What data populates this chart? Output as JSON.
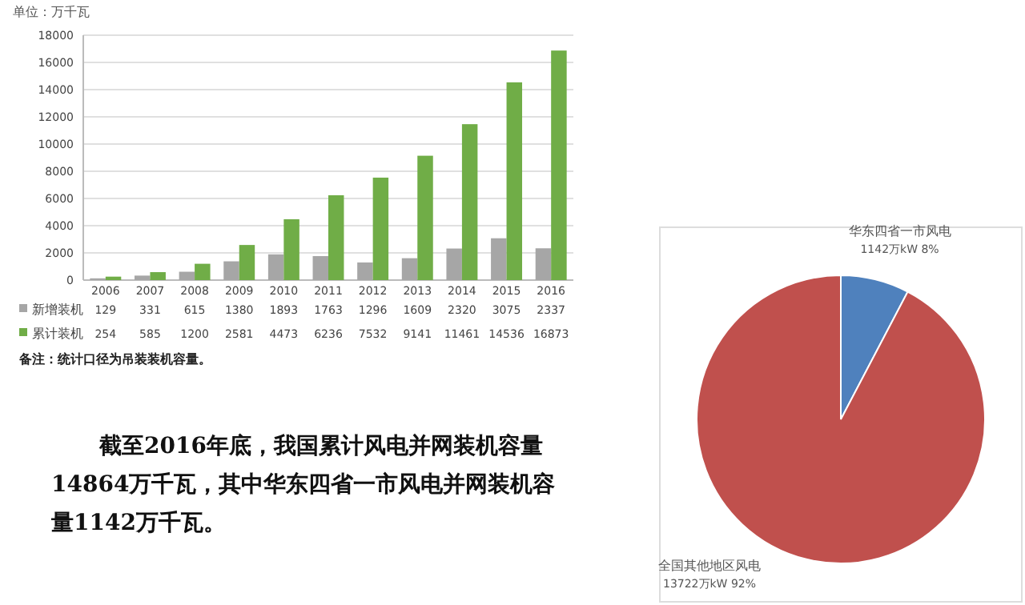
{
  "chart_data": [
    {
      "type": "bar",
      "ylabel": "单位：万千瓦",
      "categories": [
        "2006",
        "2007",
        "2008",
        "2009",
        "2010",
        "2011",
        "2012",
        "2013",
        "2014",
        "2015",
        "2016"
      ],
      "series": [
        {
          "name": "新增装机",
          "color": "#a6a6a6",
          "values": [
            129,
            331,
            615,
            1380,
            1893,
            1763,
            1296,
            1609,
            2320,
            3075,
            2337
          ]
        },
        {
          "name": "累计装机",
          "color": "#70ad47",
          "values": [
            254,
            585,
            1200,
            2581,
            4473,
            6236,
            7532,
            9141,
            11461,
            14536,
            16873
          ]
        }
      ],
      "ylim": [
        0,
        18000
      ],
      "yticks": [
        0,
        2000,
        4000,
        6000,
        8000,
        10000,
        12000,
        14000,
        16000,
        18000
      ],
      "grid": "y",
      "legend": "bottom",
      "data_labels": true,
      "annotations": [
        "备注：统计口径为吊装装机容量。"
      ]
    },
    {
      "type": "pie",
      "categories": [
        "华东四省一市风电",
        "全国其他地区风电"
      ],
      "values": [
        1142,
        13722
      ],
      "colors": [
        "#4f81bd",
        "#c0504d"
      ],
      "value_labels": [
        "1142万kW  8%",
        "13722万kW  92%"
      ]
    },
    {
      "type": "other",
      "annotations": [
        "截至2016年底，我国累计风电并网装机容量",
        "14864万千瓦，其中华东四省一市风电并网装机容",
        "量1142万千瓦。"
      ]
    }
  ]
}
